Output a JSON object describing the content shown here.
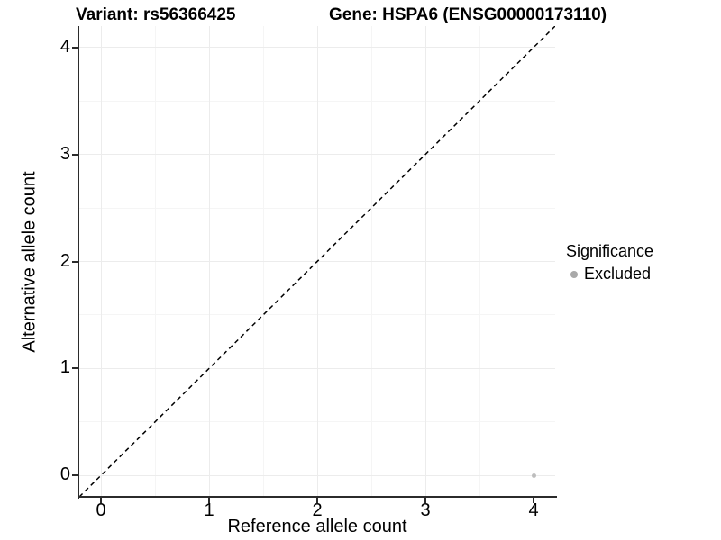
{
  "header": {
    "variant_title": "Variant: rs56366425",
    "gene_title": "Gene: HSPA6 (ENSG00000173110)"
  },
  "axes": {
    "x_label": "Reference allele count",
    "y_label": "Alternative allele count"
  },
  "legend": {
    "title": "Significance",
    "items": [
      {
        "label": "Excluded",
        "color": "#a9a9a9"
      }
    ]
  },
  "colors": {
    "background": "#ffffff",
    "axis_line": "#2b2b2b",
    "tick_mark": "#2b2b2b",
    "text": "#000000",
    "grid_major": "#ececec",
    "grid_minor": "#f5f5f5",
    "reference_line": "#000000",
    "point": "#bdbdbd"
  },
  "chart_data": {
    "type": "scatter",
    "title": "Variant: rs56366425 — Gene: HSPA6 (ENSG00000173110)",
    "xlabel": "Reference allele count",
    "ylabel": "Alternative allele count",
    "xlim": [
      -0.2,
      4.2
    ],
    "ylim": [
      -0.2,
      4.2
    ],
    "x_ticks": [
      0,
      1,
      2,
      3,
      4
    ],
    "y_ticks": [
      0,
      1,
      2,
      3,
      4
    ],
    "x_minor_ticks": [
      0.5,
      1.5,
      2.5,
      3.5
    ],
    "y_minor_ticks": [
      0.5,
      1.5,
      2.5,
      3.5
    ],
    "grid": "major+minor",
    "legend_position": "right-center",
    "series": [
      {
        "name": "Excluded",
        "color": "#bdbdbd",
        "marker": "circle",
        "marker_size_px": 5,
        "points": [
          {
            "x": 4,
            "y": 0
          }
        ]
      }
    ],
    "reference_line": {
      "style": "dashed",
      "color": "#000000",
      "from": [
        -0.2,
        -0.2
      ],
      "to": [
        4.2,
        4.2
      ]
    }
  }
}
